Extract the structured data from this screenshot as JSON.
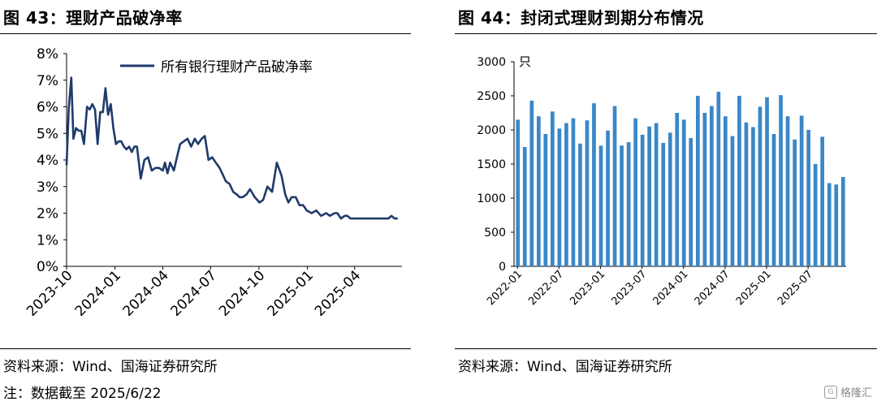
{
  "left": {
    "title": "图 43：理财产品破净率",
    "source": "资料来源：Wind、国海证券研究所",
    "note": "注：数据截至 2025/6/22"
  },
  "right": {
    "title": "图 44：封闭式理财到期分布情况",
    "source": "资料来源：Wind、国海证券研究所"
  },
  "watermark": {
    "text": "格隆汇",
    "icon": "gelonghui-logo-icon"
  },
  "chart_data": [
    {
      "type": "line",
      "title": "",
      "xlabel": "",
      "ylabel": "",
      "y_unit": "%",
      "ylim": [
        0,
        8
      ],
      "yticks": [
        "0%",
        "1%",
        "2%",
        "3%",
        "4%",
        "5%",
        "6%",
        "7%",
        "8%"
      ],
      "xticks": [
        "2023-10",
        "2024-01",
        "2024-04",
        "2024-07",
        "2024-10",
        "2025-01",
        "2025-04"
      ],
      "xlim": [
        "2023-10-01",
        "2025-06-30"
      ],
      "grid": false,
      "legend_position": "top",
      "color": "#1f3a6b",
      "series": [
        {
          "name": "所有银行理财产品破净率",
          "x": [
            "2023-10-01",
            "2023-10-05",
            "2023-10-10",
            "2023-10-14",
            "2023-10-19",
            "2023-10-24",
            "2023-10-29",
            "2023-11-03",
            "2023-11-09",
            "2023-11-14",
            "2023-11-19",
            "2023-11-24",
            "2023-11-29",
            "2023-12-04",
            "2023-12-09",
            "2023-12-14",
            "2023-12-19",
            "2023-12-24",
            "2023-12-29",
            "2024-01-03",
            "2024-01-08",
            "2024-01-13",
            "2024-01-18",
            "2024-01-23",
            "2024-01-28",
            "2024-02-02",
            "2024-02-07",
            "2024-02-12",
            "2024-02-19",
            "2024-02-26",
            "2024-03-04",
            "2024-03-11",
            "2024-03-18",
            "2024-03-25",
            "2024-04-01",
            "2024-04-05",
            "2024-04-10",
            "2024-04-15",
            "2024-04-22",
            "2024-04-28",
            "2024-05-04",
            "2024-05-11",
            "2024-05-18",
            "2024-05-25",
            "2024-06-01",
            "2024-06-07",
            "2024-06-14",
            "2024-06-20",
            "2024-06-27",
            "2024-07-04",
            "2024-07-11",
            "2024-07-18",
            "2024-07-23",
            "2024-07-30",
            "2024-08-06",
            "2024-08-13",
            "2024-08-20",
            "2024-08-25",
            "2024-08-31",
            "2024-09-07",
            "2024-09-14",
            "2024-09-23",
            "2024-10-02",
            "2024-10-09",
            "2024-10-17",
            "2024-10-26",
            "2024-11-04",
            "2024-11-13",
            "2024-11-20",
            "2024-11-26",
            "2024-12-02",
            "2024-12-10",
            "2024-12-17",
            "2024-12-24",
            "2024-12-31",
            "2025-01-09",
            "2025-01-18",
            "2025-01-27",
            "2025-02-06",
            "2025-02-13",
            "2025-02-22",
            "2025-02-27",
            "2025-03-06",
            "2025-03-13",
            "2025-03-18",
            "2025-03-24",
            "2025-03-31",
            "2025-04-08",
            "2025-04-15",
            "2025-04-24",
            "2025-05-02",
            "2025-05-11",
            "2025-05-20",
            "2025-05-29",
            "2025-06-04",
            "2025-06-10",
            "2025-06-16",
            "2025-06-22"
          ],
          "values": [
            3.8,
            5.9,
            7.1,
            4.8,
            5.2,
            5.1,
            5.1,
            4.6,
            6.0,
            5.9,
            6.1,
            5.9,
            4.6,
            5.8,
            5.8,
            6.7,
            5.7,
            6.1,
            5.2,
            4.6,
            4.7,
            4.7,
            4.5,
            4.4,
            4.5,
            4.3,
            4.5,
            4.5,
            3.3,
            4.0,
            4.1,
            3.6,
            3.7,
            3.7,
            3.6,
            3.9,
            3.5,
            3.9,
            3.6,
            4.1,
            4.6,
            4.7,
            4.8,
            4.5,
            4.8,
            4.6,
            4.8,
            4.9,
            4.0,
            4.1,
            3.9,
            3.7,
            3.5,
            3.2,
            3.1,
            2.8,
            2.7,
            2.6,
            2.6,
            2.7,
            2.9,
            2.6,
            2.4,
            2.5,
            3.0,
            2.8,
            3.9,
            3.4,
            2.7,
            2.4,
            2.6,
            2.6,
            2.3,
            2.3,
            2.1,
            2.0,
            2.1,
            1.9,
            2.0,
            1.9,
            2.0,
            2.0,
            1.8,
            1.9,
            1.9,
            1.8,
            1.8,
            1.8,
            1.8,
            1.8,
            1.8,
            1.8,
            1.8,
            1.8,
            1.8,
            1.9,
            1.8,
            1.8
          ]
        }
      ]
    },
    {
      "type": "bar",
      "title": "",
      "xlabel": "",
      "ylabel": "只",
      "ylim": [
        0,
        3000
      ],
      "yticks": [
        "0",
        "500",
        "1000",
        "1500",
        "2000",
        "2500",
        "3000"
      ],
      "xticks": [
        "2022-01",
        "2022-07",
        "2023-01",
        "2023-07",
        "2024-01",
        "2024-07",
        "2025-01",
        "2025-07"
      ],
      "grid": false,
      "color": "#3a87c8",
      "categories": [
        "2022-01",
        "2022-02",
        "2022-03",
        "2022-04",
        "2022-05",
        "2022-06",
        "2022-07",
        "2022-08",
        "2022-09",
        "2022-10",
        "2022-11",
        "2022-12",
        "2023-01",
        "2023-02",
        "2023-03",
        "2023-04",
        "2023-05",
        "2023-06",
        "2023-07",
        "2023-08",
        "2023-09",
        "2023-10",
        "2023-11",
        "2023-12",
        "2024-01",
        "2024-02",
        "2024-03",
        "2024-04",
        "2024-05",
        "2024-06",
        "2024-07",
        "2024-08",
        "2024-09",
        "2024-10",
        "2024-11",
        "2024-12",
        "2025-01",
        "2025-02",
        "2025-03",
        "2025-04",
        "2025-05",
        "2025-06",
        "2025-07",
        "2025-08",
        "2025-09",
        "2025-10",
        "2025-11",
        "2025-12"
      ],
      "values": [
        2150,
        1750,
        2430,
        2200,
        1940,
        2270,
        2020,
        2100,
        2170,
        1800,
        2140,
        2390,
        1770,
        1990,
        2350,
        1770,
        1820,
        2170,
        1930,
        2050,
        2100,
        1810,
        1960,
        2250,
        2150,
        1880,
        2500,
        2250,
        2350,
        2560,
        2200,
        1910,
        2500,
        2110,
        2040,
        2340,
        2480,
        1940,
        2510,
        2200,
        1860,
        2210,
        2000,
        1500,
        1900,
        1220,
        1200,
        1310
      ]
    }
  ]
}
